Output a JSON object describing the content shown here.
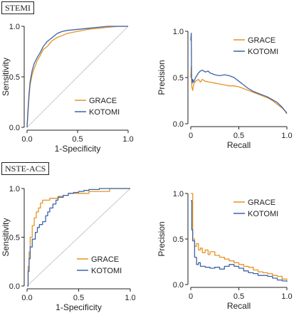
{
  "colors": {
    "grace": "#e69325",
    "kotomi": "#3c64a8",
    "diagonal": "#bbbbbb",
    "axis": "#222222"
  },
  "sections": [
    {
      "label": "STEMI"
    },
    {
      "label": "NSTE-ACS"
    }
  ],
  "chart_data": [
    {
      "type": "line",
      "panel": "STEMI ROC",
      "xlabel": "1-Specificity",
      "ylabel": "Sensitivity",
      "xlim": [
        0,
        1
      ],
      "ylim": [
        0,
        1
      ],
      "xticks": [
        "0.0",
        "0.5",
        "1.0"
      ],
      "yticks": [
        "0.0",
        "0.5",
        "1.0"
      ],
      "legend": "bottom-right",
      "reference_diagonal": true,
      "series": [
        {
          "name": "GRACE",
          "color": "#e69325",
          "step": false,
          "x": [
            0,
            0.01,
            0.02,
            0.03,
            0.05,
            0.07,
            0.1,
            0.13,
            0.16,
            0.2,
            0.25,
            0.3,
            0.35,
            0.4,
            0.5,
            0.6,
            0.7,
            0.8,
            0.9,
            1.0
          ],
          "y": [
            0,
            0.15,
            0.3,
            0.42,
            0.52,
            0.58,
            0.66,
            0.71,
            0.77,
            0.8,
            0.86,
            0.89,
            0.91,
            0.93,
            0.95,
            0.97,
            0.98,
            0.99,
            1.0,
            1.0
          ]
        },
        {
          "name": "KOTOMI",
          "color": "#3c64a8",
          "step": false,
          "x": [
            0,
            0.01,
            0.02,
            0.03,
            0.05,
            0.07,
            0.1,
            0.13,
            0.16,
            0.2,
            0.25,
            0.3,
            0.35,
            0.4,
            0.5,
            0.6,
            0.7,
            0.8,
            0.9,
            1.0
          ],
          "y": [
            0,
            0.18,
            0.33,
            0.45,
            0.56,
            0.63,
            0.69,
            0.74,
            0.8,
            0.85,
            0.89,
            0.93,
            0.95,
            0.96,
            0.97,
            0.98,
            0.99,
            1.0,
            1.0,
            1.0
          ]
        }
      ]
    },
    {
      "type": "line",
      "panel": "STEMI PR",
      "xlabel": "Recall",
      "ylabel": "Precision",
      "xlim": [
        0,
        1
      ],
      "ylim": [
        0,
        1
      ],
      "xticks": [
        "0",
        "0.5",
        "1.0"
      ],
      "yticks": [
        "0.0",
        "0.5",
        "1.0"
      ],
      "legend": "top-right",
      "series": [
        {
          "name": "GRACE",
          "color": "#e69325",
          "step": false,
          "x": [
            0,
            0.005,
            0.01,
            0.02,
            0.03,
            0.05,
            0.08,
            0.1,
            0.12,
            0.15,
            0.2,
            0.25,
            0.3,
            0.35,
            0.4,
            0.45,
            0.5,
            0.55,
            0.6,
            0.65,
            0.7,
            0.75,
            0.8,
            0.85,
            0.9,
            0.95,
            0.98,
            1.0
          ],
          "y": [
            0.5,
            0.62,
            0.4,
            0.36,
            0.43,
            0.46,
            0.48,
            0.45,
            0.48,
            0.46,
            0.45,
            0.44,
            0.43,
            0.42,
            0.41,
            0.41,
            0.4,
            0.38,
            0.36,
            0.34,
            0.32,
            0.3,
            0.28,
            0.25,
            0.21,
            0.17,
            0.14,
            0.12
          ]
        },
        {
          "name": "KOTOMI",
          "color": "#3c64a8",
          "step": false,
          "x": [
            0,
            0.005,
            0.008,
            0.015,
            0.02,
            0.03,
            0.05,
            0.08,
            0.1,
            0.12,
            0.15,
            0.18,
            0.2,
            0.25,
            0.3,
            0.35,
            0.4,
            0.45,
            0.5,
            0.55,
            0.6,
            0.65,
            0.7,
            0.75,
            0.8,
            0.85,
            0.9,
            0.95,
            0.98,
            1.0
          ],
          "y": [
            0.9,
            0.98,
            0.5,
            0.44,
            0.48,
            0.45,
            0.5,
            0.55,
            0.57,
            0.58,
            0.56,
            0.57,
            0.55,
            0.53,
            0.52,
            0.53,
            0.52,
            0.5,
            0.46,
            0.42,
            0.38,
            0.35,
            0.33,
            0.31,
            0.29,
            0.26,
            0.23,
            0.18,
            0.14,
            0.11
          ]
        }
      ]
    },
    {
      "type": "line",
      "panel": "NSTE-ACS ROC",
      "xlabel": "1-Specificity",
      "ylabel": "Sensitivity",
      "xlim": [
        0,
        1
      ],
      "ylim": [
        0,
        1
      ],
      "xticks": [
        "0.0",
        "0.5",
        "1.0"
      ],
      "yticks": [
        "0.0",
        "0.5",
        "1.0"
      ],
      "legend": "bottom-right",
      "reference_diagonal": true,
      "series": [
        {
          "name": "GRACE",
          "color": "#e69325",
          "step": true,
          "x": [
            0,
            0.01,
            0.02,
            0.03,
            0.05,
            0.07,
            0.09,
            0.11,
            0.13,
            0.15,
            0.18,
            0.22,
            0.26,
            0.3,
            0.35,
            0.4,
            0.5,
            0.6,
            0.7,
            0.8,
            1.0
          ],
          "y": [
            0,
            0.2,
            0.35,
            0.5,
            0.62,
            0.7,
            0.76,
            0.8,
            0.85,
            0.88,
            0.88,
            0.9,
            0.9,
            0.92,
            0.93,
            0.95,
            0.95,
            0.97,
            0.97,
            1.0,
            1.0
          ]
        },
        {
          "name": "KOTOMI",
          "color": "#3c64a8",
          "step": true,
          "x": [
            0,
            0.01,
            0.02,
            0.03,
            0.05,
            0.08,
            0.1,
            0.12,
            0.15,
            0.18,
            0.2,
            0.22,
            0.25,
            0.28,
            0.3,
            0.35,
            0.4,
            0.45,
            0.5,
            0.55,
            0.6,
            0.7,
            0.8,
            1.0
          ],
          "y": [
            0,
            0.15,
            0.28,
            0.4,
            0.48,
            0.55,
            0.6,
            0.63,
            0.66,
            0.72,
            0.76,
            0.8,
            0.84,
            0.88,
            0.91,
            0.93,
            0.95,
            0.96,
            0.97,
            0.98,
            0.99,
            1.0,
            1.0,
            1.0
          ]
        }
      ]
    },
    {
      "type": "line",
      "panel": "NSTE-ACS PR",
      "xlabel": "Recall",
      "ylabel": "Precision",
      "xlim": [
        0,
        1
      ],
      "ylim": [
        0,
        1
      ],
      "xticks": [
        "0",
        "0.5",
        "1.0"
      ],
      "yticks": [
        "0.0",
        "0.5",
        "1.0"
      ],
      "legend": "top-right",
      "series": [
        {
          "name": "GRACE",
          "color": "#e69325",
          "step": true,
          "x": [
            0,
            0.02,
            0.04,
            0.06,
            0.08,
            0.1,
            0.12,
            0.15,
            0.18,
            0.2,
            0.25,
            0.3,
            0.35,
            0.4,
            0.45,
            0.5,
            0.55,
            0.6,
            0.65,
            0.7,
            0.75,
            0.8,
            0.85,
            0.9,
            0.95,
            1.0
          ],
          "y": [
            1.0,
            0.5,
            0.42,
            0.45,
            0.38,
            0.4,
            0.35,
            0.38,
            0.33,
            0.36,
            0.32,
            0.3,
            0.28,
            0.26,
            0.24,
            0.22,
            0.2,
            0.19,
            0.16,
            0.14,
            0.13,
            0.12,
            0.1,
            0.09,
            0.06,
            0.05
          ]
        },
        {
          "name": "KOTOMI",
          "color": "#3c64a8",
          "step": true,
          "x": [
            0,
            0.01,
            0.02,
            0.04,
            0.06,
            0.08,
            0.1,
            0.15,
            0.2,
            0.25,
            0.3,
            0.35,
            0.4,
            0.45,
            0.5,
            0.55,
            0.6,
            0.65,
            0.7,
            0.75,
            0.8,
            0.85,
            0.9,
            0.95,
            1.0
          ],
          "y": [
            0.92,
            0.6,
            0.48,
            0.3,
            0.22,
            0.24,
            0.2,
            0.19,
            0.18,
            0.19,
            0.17,
            0.2,
            0.22,
            0.2,
            0.18,
            0.15,
            0.13,
            0.12,
            0.1,
            0.1,
            0.09,
            0.07,
            0.05,
            0.04,
            0.03
          ]
        }
      ]
    }
  ]
}
